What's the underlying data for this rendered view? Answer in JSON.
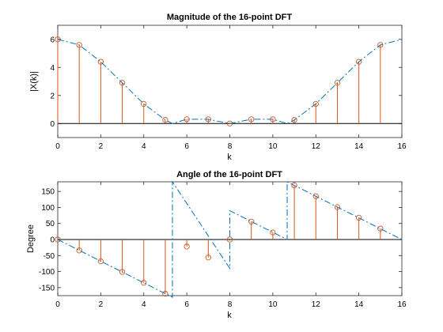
{
  "chart_data": [
    {
      "type": "stem",
      "title": "Magnitude of the 16-point DFT",
      "xlabel": "k",
      "ylabel": "|X(k)|",
      "xlim": [
        0,
        16
      ],
      "ylim": [
        -1,
        7
      ],
      "xticks": [
        0,
        2,
        4,
        6,
        8,
        10,
        12,
        14,
        16
      ],
      "yticks": [
        0,
        2,
        4,
        6
      ],
      "grid": false,
      "series": [
        {
          "style": "stem",
          "color": "#d95319",
          "x": [
            0,
            1,
            2,
            3,
            4,
            5,
            6,
            7,
            8,
            9,
            10,
            11,
            12,
            13,
            14,
            15
          ],
          "y": [
            6,
            5.6,
            4.4,
            2.9,
            1.4,
            0.25,
            0.3,
            0.3,
            0,
            0.3,
            0.3,
            0.25,
            1.4,
            2.9,
            4.4,
            5.6
          ]
        },
        {
          "style": "dashdot",
          "color": "#0072bd",
          "x": [
            0,
            1,
            2,
            3,
            4,
            5,
            5.33,
            6,
            7,
            8,
            9,
            10,
            10.67,
            11,
            12,
            13,
            14,
            15,
            16
          ],
          "y": [
            6,
            5.6,
            4.4,
            2.9,
            1.4,
            0.25,
            0,
            0.3,
            0.3,
            0,
            0.3,
            0.3,
            0,
            0.25,
            1.4,
            2.9,
            4.4,
            5.6,
            6
          ]
        }
      ]
    },
    {
      "type": "stem",
      "title": "Angle of the 16-point DFT",
      "xlabel": "k",
      "ylabel": "Degree",
      "xlim": [
        0,
        16
      ],
      "ylim": [
        -175,
        180
      ],
      "xticks": [
        0,
        2,
        4,
        6,
        8,
        10,
        12,
        14,
        16
      ],
      "yticks": [
        -150,
        -100,
        -50,
        0,
        50,
        100,
        150
      ],
      "grid": false,
      "series": [
        {
          "style": "stem",
          "color": "#d95319",
          "x": [
            0,
            1,
            2,
            3,
            4,
            5,
            6,
            7,
            8,
            9,
            10,
            11,
            12,
            13,
            14,
            15
          ],
          "y": [
            0,
            -34,
            -68,
            -101,
            -135,
            -169,
            -22,
            -56,
            0,
            56,
            22,
            169,
            135,
            101,
            68,
            34
          ]
        },
        {
          "style": "dashdot",
          "color": "#0072bd",
          "x": [
            0,
            5.333,
            5.333,
            8,
            8,
            10.667,
            10.667,
            16
          ],
          "y": [
            0,
            -180,
            180,
            -90,
            90,
            0,
            180,
            0
          ]
        }
      ]
    }
  ]
}
